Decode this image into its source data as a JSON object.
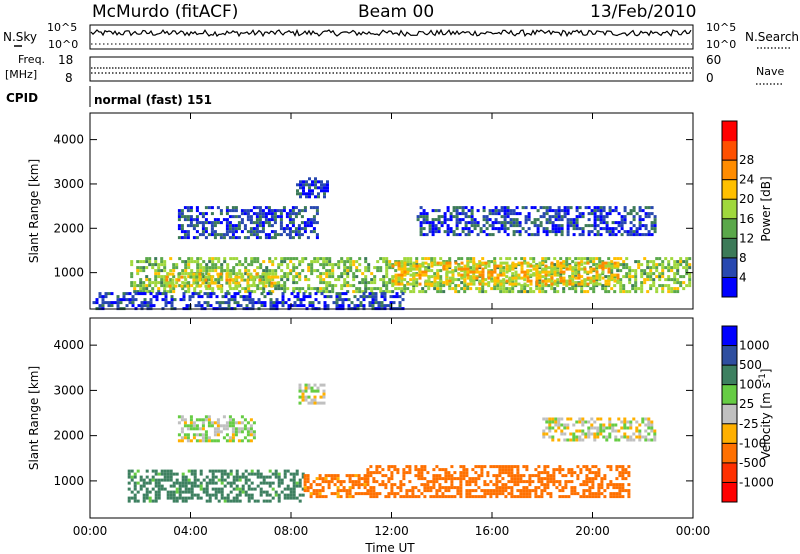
{
  "header": {
    "station": "McMurdo (fitACF)",
    "beam": "Beam 00",
    "date": "13/Feb/2010"
  },
  "top_panels": {
    "noise": {
      "left_label": "N.Sky",
      "right_label": "N.Search",
      "left_ticks": [
        "10^5",
        "10^0"
      ],
      "right_ticks": [
        "10^5",
        "10^0"
      ]
    },
    "freq": {
      "left_label_1": "Freq.",
      "left_label_2": "[MHz]",
      "right_label": "Nave",
      "left_ticks": [
        "18",
        "8"
      ],
      "right_ticks": [
        "60",
        "0"
      ]
    },
    "cpid": {
      "label": "CPID",
      "mode_text": "normal (fast) 151"
    }
  },
  "chart_data": [
    {
      "type": "heatmap",
      "panel": "power",
      "xlabel": "",
      "ylabel": "Slant Range [km]",
      "x_ticks": [
        "00:00",
        "04:00",
        "08:00",
        "12:00",
        "16:00",
        "20:00",
        "00:00"
      ],
      "xlim_hours": [
        0,
        24
      ],
      "ylim": [
        180,
        4600
      ],
      "y_ticks": [
        1000,
        2000,
        3000,
        4000
      ],
      "colorbar": {
        "label": "Power [dB]",
        "ticks": [
          "4",
          "8",
          "12",
          "16",
          "20",
          "24",
          "28"
        ],
        "colors": [
          "#0000ff",
          "#2848b0",
          "#3c7a58",
          "#5aa84a",
          "#a0d83c",
          "#ffc000",
          "#ff8c00",
          "#ff5000",
          "#ff0000"
        ]
      },
      "bands": [
        {
          "t0": 1.6,
          "t1": 23.9,
          "r0": 600,
          "r1": 1350,
          "level_dB": 16
        },
        {
          "t0": 12.0,
          "t1": 21.0,
          "r0": 750,
          "r1": 1250,
          "level_dB": 22
        },
        {
          "t0": 3.0,
          "t1": 7.5,
          "r0": 700,
          "r1": 1000,
          "level_dB": 20
        },
        {
          "t0": 3.5,
          "t1": 9.0,
          "r0": 1800,
          "r1": 2500,
          "level_dB": 6
        },
        {
          "t0": 13.0,
          "t1": 22.5,
          "r0": 1850,
          "r1": 2500,
          "level_dB": 6
        },
        {
          "t0": 8.2,
          "t1": 9.4,
          "r0": 2700,
          "r1": 3150,
          "level_dB": 6
        },
        {
          "t0": 0.1,
          "t1": 12.5,
          "r0": 200,
          "r1": 560,
          "level_dB": 5
        }
      ]
    },
    {
      "type": "heatmap",
      "panel": "velocity",
      "xlabel": "Time UT",
      "ylabel": "Slant Range [km]",
      "x_ticks": [
        "00:00",
        "04:00",
        "08:00",
        "12:00",
        "16:00",
        "20:00",
        "00:00"
      ],
      "xlim_hours": [
        0,
        24
      ],
      "ylim": [
        180,
        4600
      ],
      "y_ticks": [
        1000,
        2000,
        3000,
        4000
      ],
      "colorbar": {
        "label": "Velocity [m s",
        "label_sup": "-1",
        "label_end": "]",
        "ticks": [
          "1000",
          "500",
          "100",
          "25",
          "-25",
          "-100",
          "-500",
          "-1000"
        ],
        "colors": [
          "#0000ff",
          "#2f4fa0",
          "#3d8060",
          "#66cc44",
          "#c0c0c0",
          "#ffb000",
          "#ff7000",
          "#ff3000",
          "#ff0000"
        ]
      },
      "bands": [
        {
          "t0": 1.5,
          "t1": 8.5,
          "r0": 550,
          "r1": 1250,
          "level_ms": 150
        },
        {
          "t0": 11.0,
          "t1": 21.5,
          "r0": 650,
          "r1": 1350,
          "level_ms": -300
        },
        {
          "t0": 8.5,
          "t1": 11.0,
          "r0": 650,
          "r1": 1150,
          "level_ms": -150
        },
        {
          "t0": 3.5,
          "t1": 6.5,
          "r0": 1900,
          "r1": 2450,
          "level_ms": 20
        },
        {
          "t0": 18.0,
          "t1": 22.5,
          "r0": 1900,
          "r1": 2400,
          "level_ms": 0
        },
        {
          "t0": 8.3,
          "t1": 9.3,
          "r0": 2700,
          "r1": 3150,
          "level_ms": 5
        }
      ]
    }
  ]
}
